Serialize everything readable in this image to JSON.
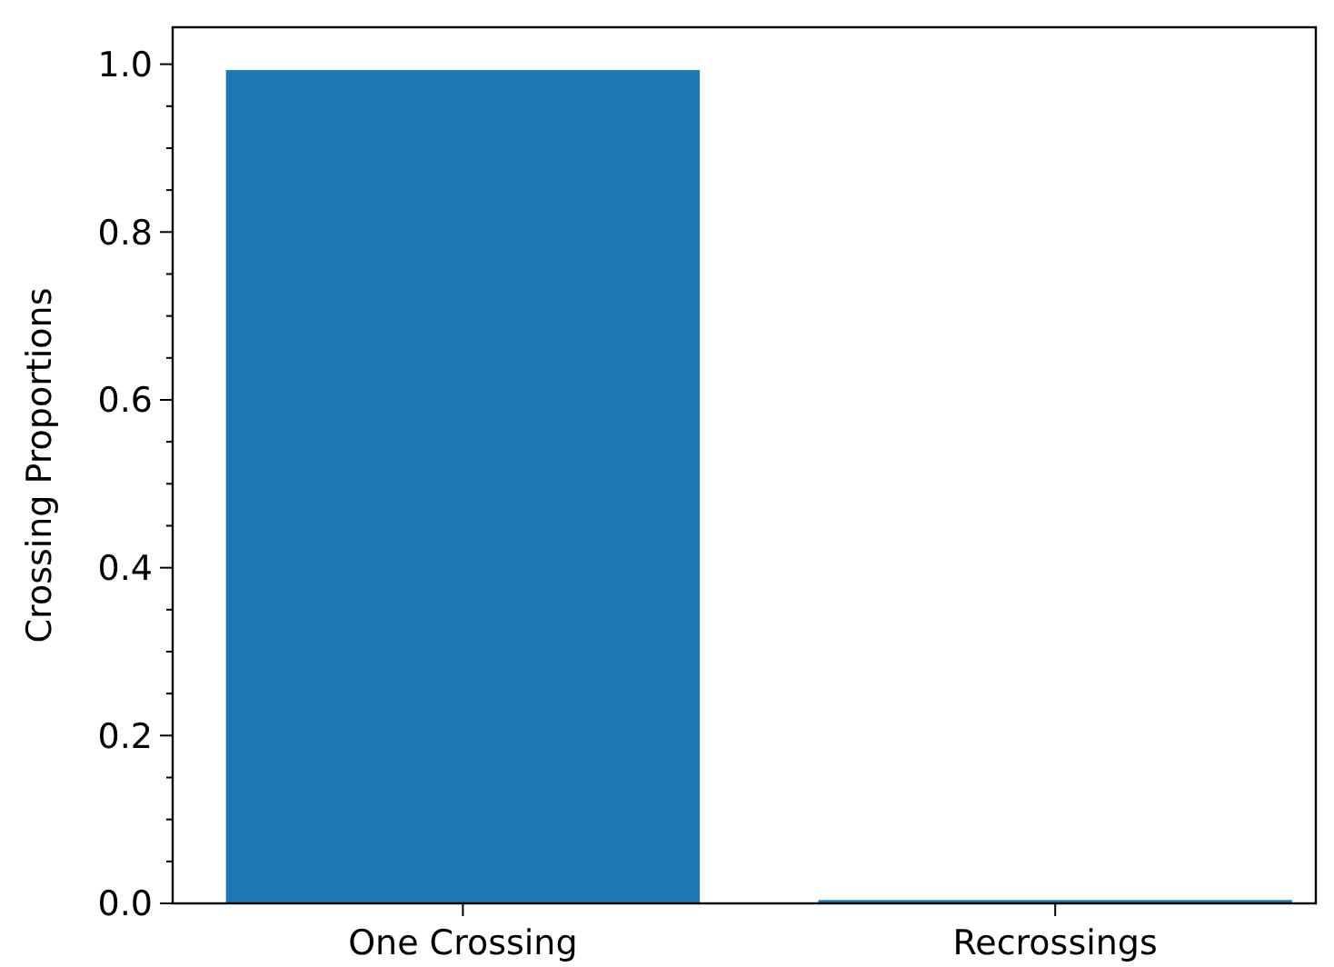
{
  "chart_data": {
    "type": "bar",
    "ylabel": "Crossing Proportions",
    "categories": [
      "One Crossing",
      "Recrossings"
    ],
    "values": [
      0.993,
      0.004
    ],
    "color": "#1f77b4",
    "ylim": [
      0,
      1.044
    ],
    "yticks": [
      {
        "value": 0,
        "label": "0.0"
      },
      {
        "value": 0.05,
        "label": null
      },
      {
        "value": 0.1,
        "label": null
      },
      {
        "value": 0.15,
        "label": null
      },
      0.2,
      {
        "value": 0.25,
        "label": null
      },
      {
        "value": 0.3,
        "label": null
      },
      {
        "value": 0.35,
        "label": null
      },
      0.4,
      {
        "value": 0.45,
        "label": null
      },
      {
        "value": 0.5,
        "label": null
      },
      {
        "value": 0.55,
        "label": null
      },
      0.6,
      {
        "value": 0.65,
        "label": null
      },
      {
        "value": 0.7,
        "label": null
      },
      {
        "value": 0.75,
        "label": null
      },
      0.8,
      {
        "value": 0.85,
        "label": null
      },
      {
        "value": 0.9,
        "label": null
      },
      {
        "value": 0.95,
        "label": null
      },
      {
        "value": 1.0,
        "label": "1.0"
      }
    ],
    "grid": false
  }
}
